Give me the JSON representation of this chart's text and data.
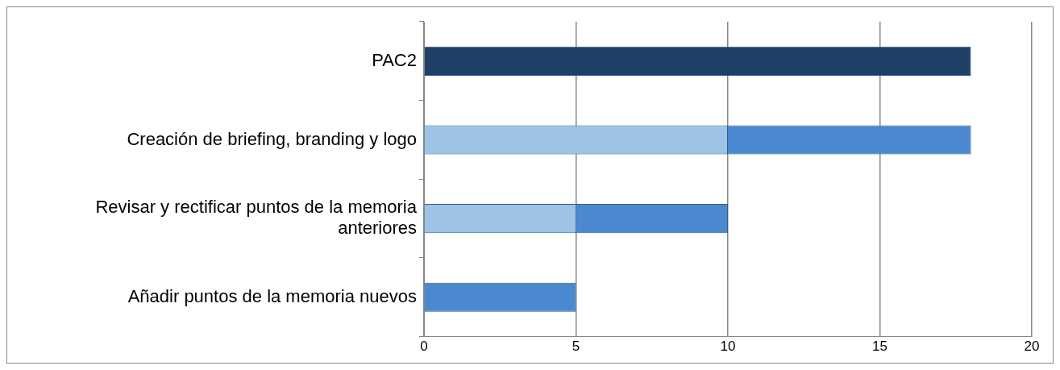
{
  "chart_data": {
    "type": "bar",
    "orientation": "horizontal",
    "stacked": true,
    "categories": [
      "PAC2",
      "Creación de briefing, branding y logo",
      "Revisar y rectificar puntos de la memoria anteriores",
      "Añadir puntos de la memoria nuevos"
    ],
    "series": [
      {
        "color": "#9dc3e6",
        "values": [
          null,
          10,
          5,
          null
        ]
      },
      {
        "colors": [
          "#1f3f66",
          "#4a89d0",
          "#4a89d0",
          "#4a89d0"
        ],
        "values": [
          18,
          8,
          5,
          5
        ]
      }
    ],
    "xlim": [
      0,
      20
    ],
    "xticks": [
      0,
      5,
      10,
      15,
      20
    ],
    "grid": "x",
    "legend": false
  }
}
